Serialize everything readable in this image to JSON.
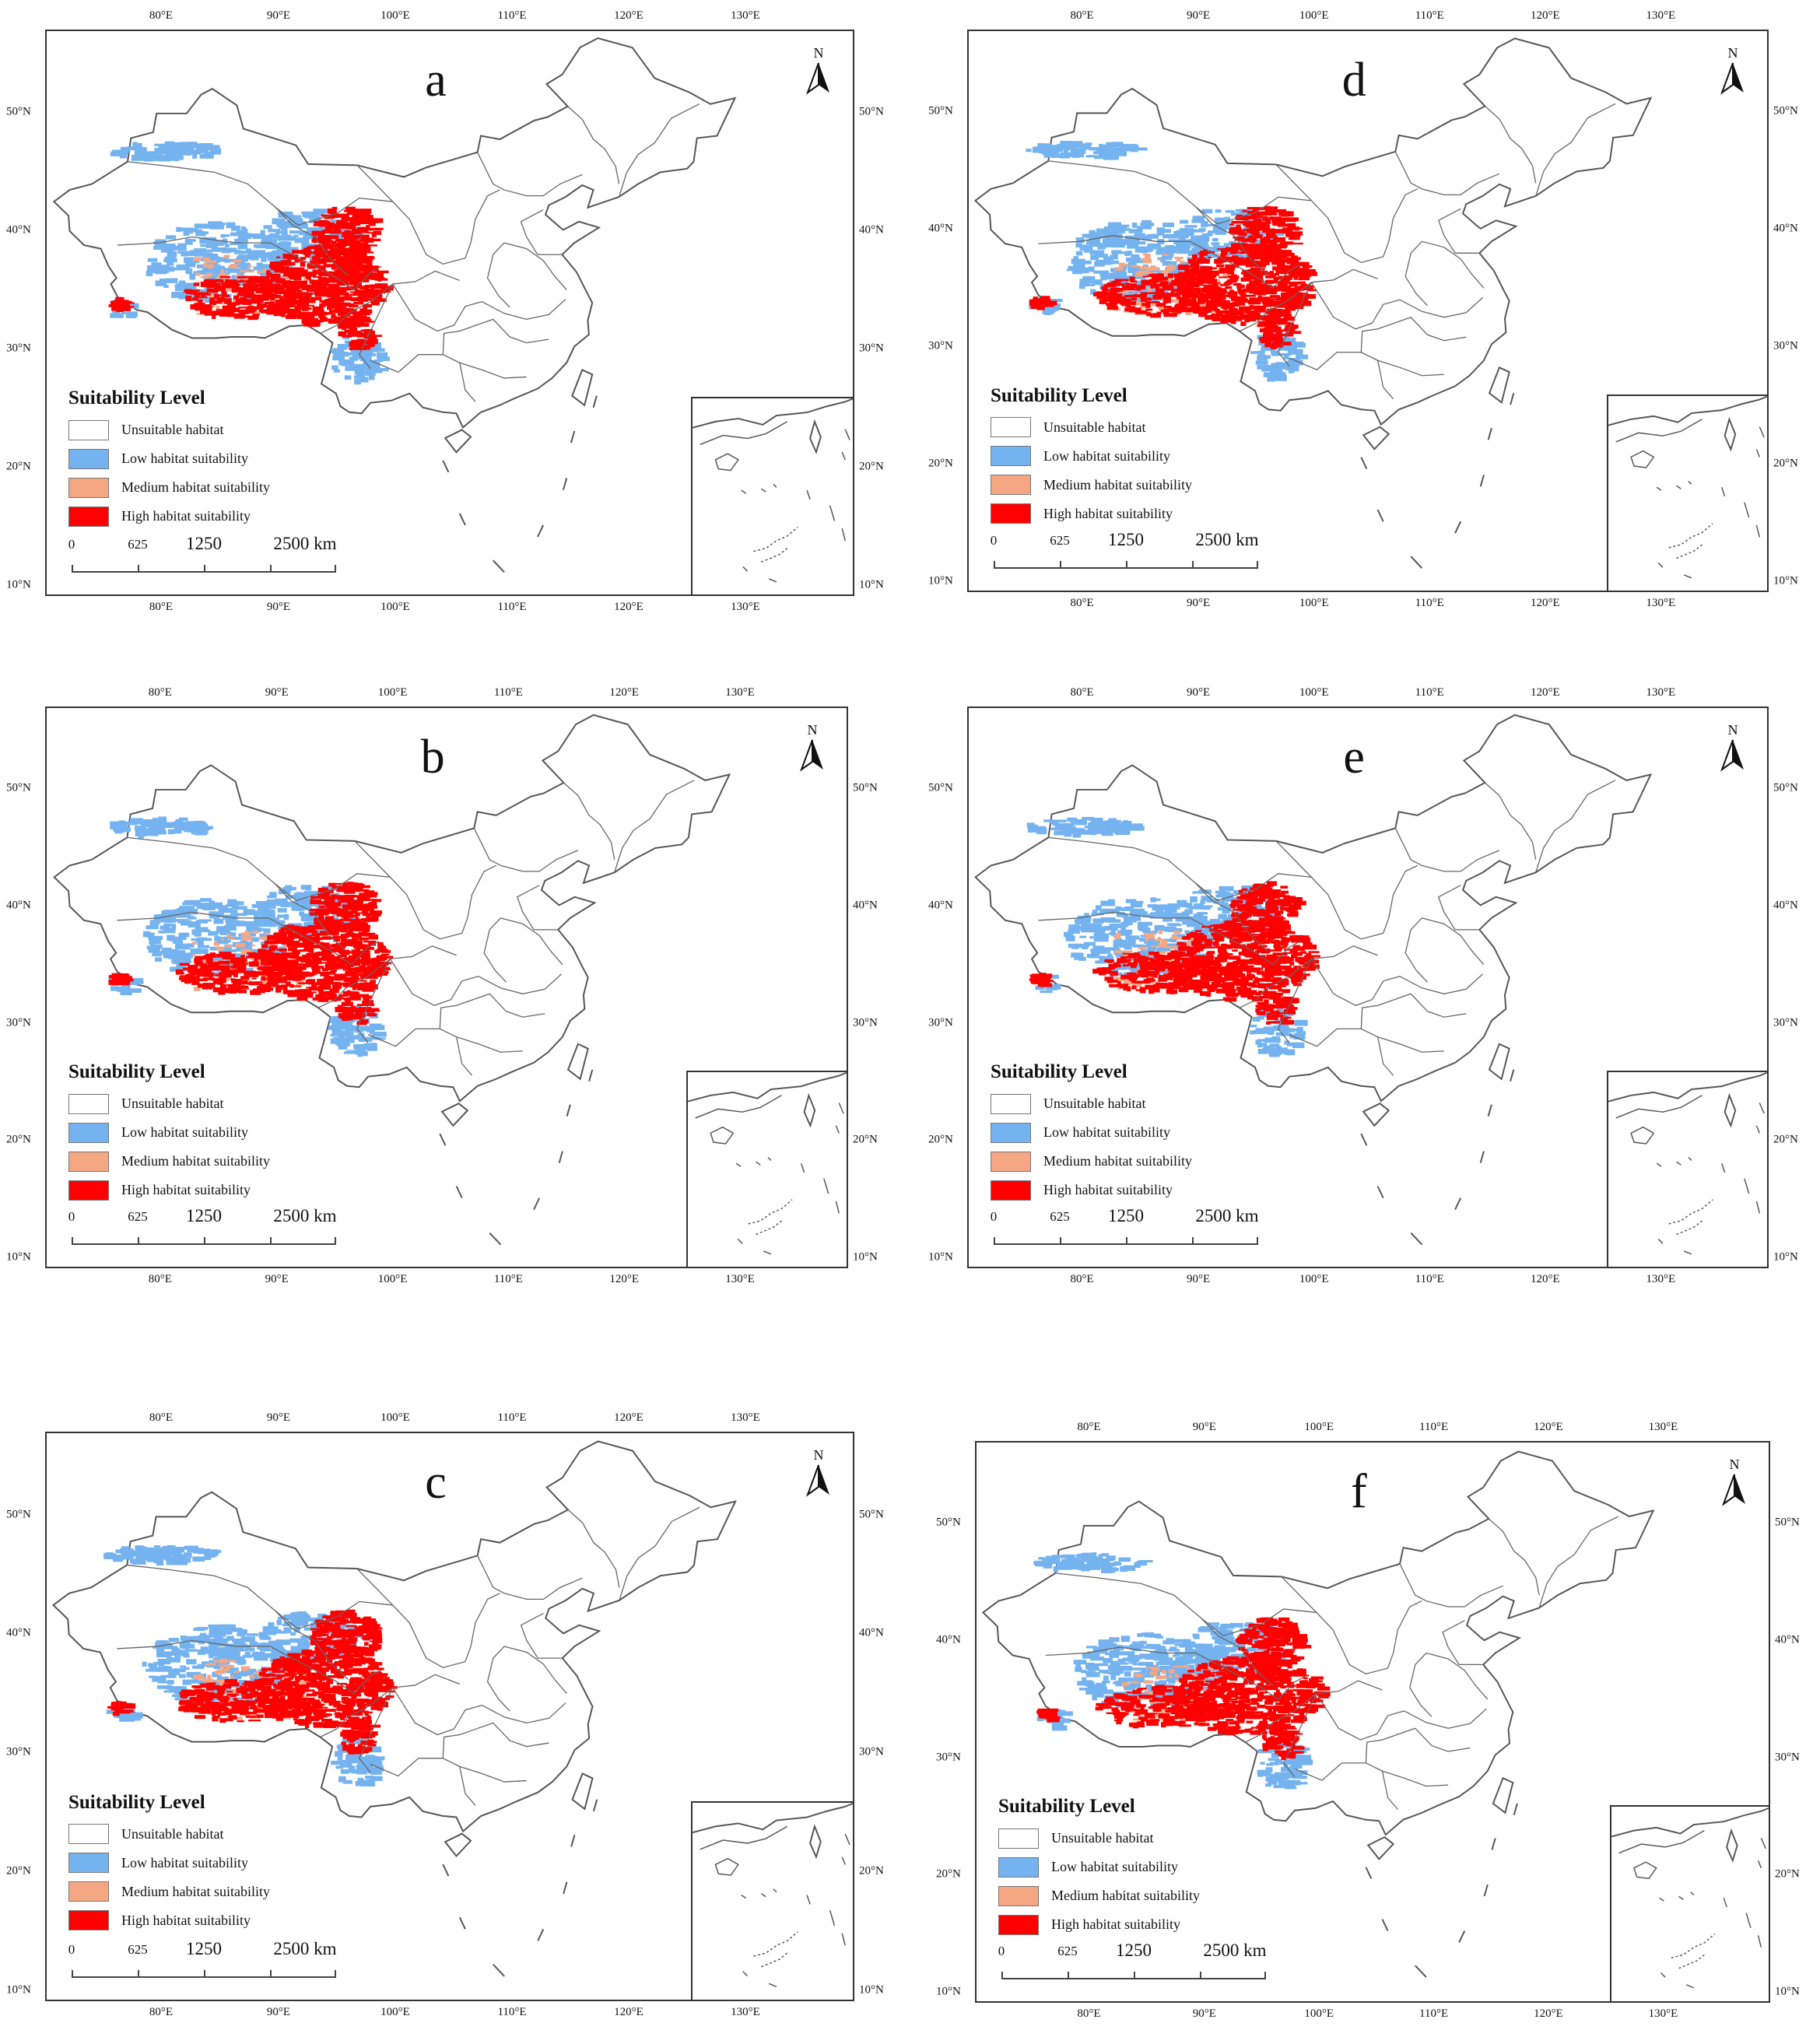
{
  "panels": [
    {
      "letter": "a"
    },
    {
      "letter": "d"
    },
    {
      "letter": "b"
    },
    {
      "letter": "e"
    },
    {
      "letter": "c"
    },
    {
      "letter": "f"
    }
  ],
  "lon_ticks": [
    "80°E",
    "90°E",
    "100°E",
    "110°E",
    "120°E",
    "130°E"
  ],
  "lat_ticks": [
    "50°N",
    "40°N",
    "30°N",
    "20°N",
    "10°N"
  ],
  "north_label": "N",
  "legend": {
    "title": "Suitability Level",
    "items": [
      {
        "label": "Unsuitable habitat",
        "color": "#ffffff"
      },
      {
        "label": "Low habitat suitability",
        "color": "#74b3ef"
      },
      {
        "label": "Medium habitat suitability",
        "color": "#f5a784"
      },
      {
        "label": "High habitat suitability",
        "color": "#ff0000"
      }
    ]
  },
  "scale_bar": {
    "labels": [
      "0",
      "625",
      "1250",
      "2500 km"
    ]
  },
  "colors": {
    "low": "#74b3ef",
    "medium": "#f5a784",
    "high": "#ff0000",
    "border": "#555555"
  }
}
